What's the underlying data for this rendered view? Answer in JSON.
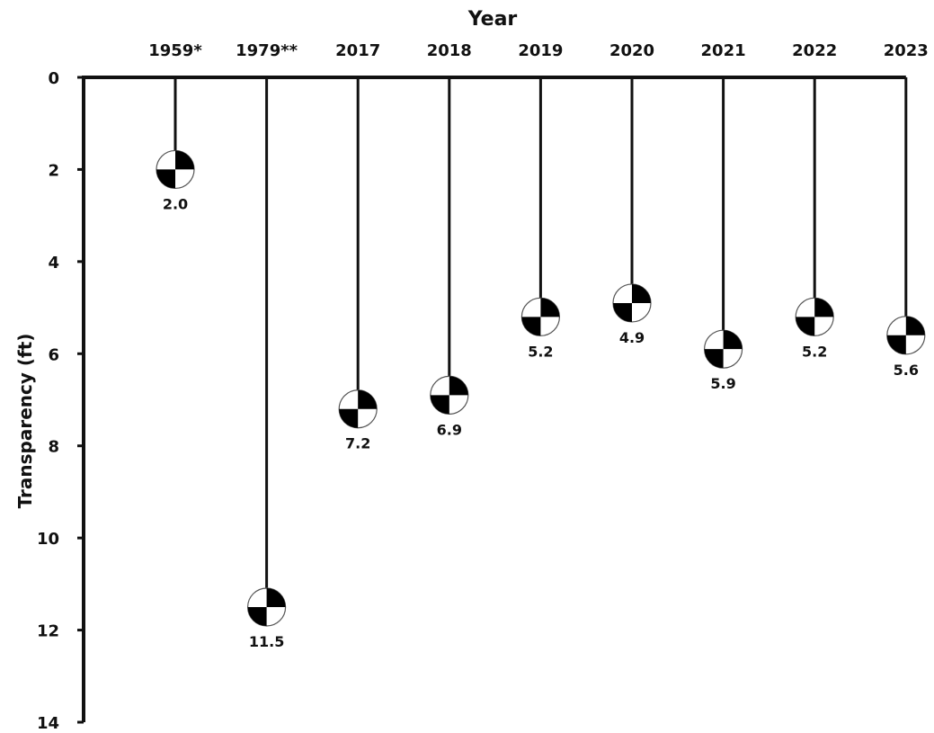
{
  "chart_data": {
    "type": "scatter",
    "title": "",
    "xlabel": "Year",
    "ylabel": "Transparency (ft)",
    "categories": [
      "1959*",
      "1979**",
      "2017",
      "2018",
      "2019",
      "2020",
      "2021",
      "2022",
      "2023"
    ],
    "values": [
      2.0,
      11.5,
      7.2,
      6.9,
      5.2,
      4.9,
      5.9,
      5.2,
      5.6
    ],
    "value_labels": [
      "2.0",
      "11.5",
      "7.2",
      "6.9",
      "5.2",
      "4.9",
      "5.9",
      "5.2",
      "5.6"
    ],
    "ylim": [
      0,
      14
    ],
    "y_ticks": [
      "0",
      "2",
      "4",
      "6",
      "8",
      "10",
      "12",
      "14"
    ],
    "y_inverted": true,
    "x_axis_position": "top",
    "marker": "secchi-disk",
    "grid": false,
    "colors": {
      "axis": "#111111",
      "marker_dark": "#000000",
      "marker_light": "#ffffff"
    }
  }
}
